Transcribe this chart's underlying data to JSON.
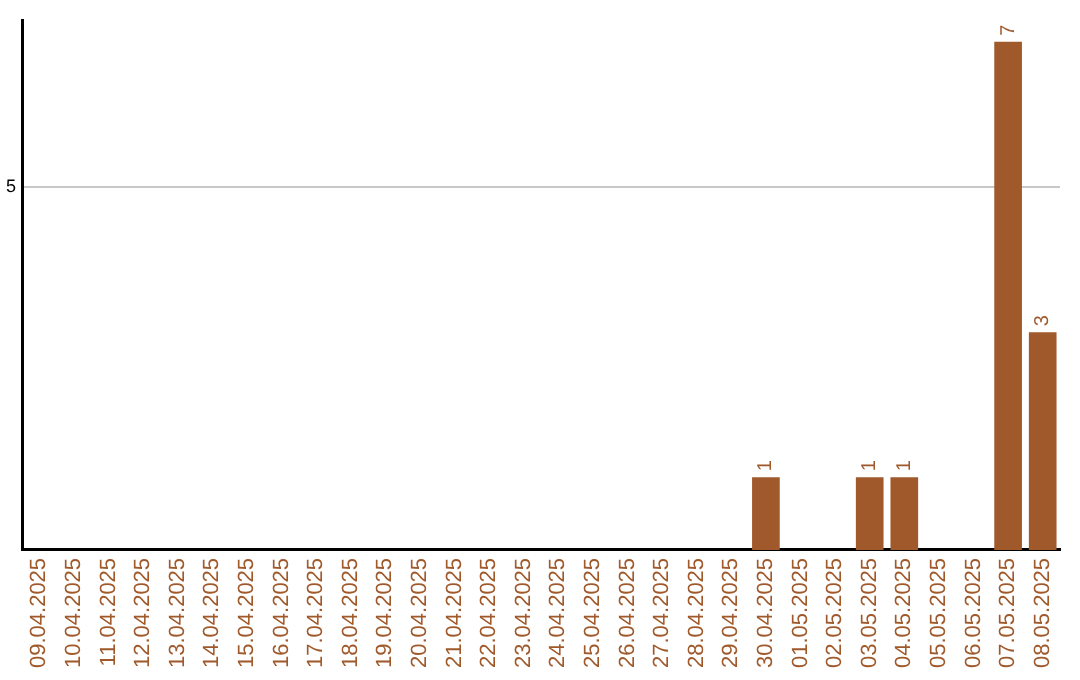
{
  "chart_data": {
    "type": "bar",
    "categories": [
      "09.04.2025",
      "10.04.2025",
      "11.04.2025",
      "12.04.2025",
      "13.04.2025",
      "14.04.2025",
      "15.04.2025",
      "16.04.2025",
      "17.04.2025",
      "18.04.2025",
      "19.04.2025",
      "20.04.2025",
      "21.04.2025",
      "22.04.2025",
      "23.04.2025",
      "24.04.2025",
      "25.04.2025",
      "26.04.2025",
      "27.04.2025",
      "28.04.2025",
      "29.04.2025",
      "30.04.2025",
      "01.05.2025",
      "02.05.2025",
      "03.05.2025",
      "04.05.2025",
      "05.05.2025",
      "06.05.2025",
      "07.05.2025",
      "08.05.2025"
    ],
    "values": [
      null,
      null,
      null,
      null,
      null,
      null,
      null,
      null,
      null,
      null,
      null,
      null,
      null,
      null,
      null,
      null,
      null,
      null,
      null,
      null,
      null,
      1,
      null,
      null,
      1,
      1,
      null,
      null,
      7,
      3
    ],
    "color": "#a0592a",
    "ylim": [
      0,
      7.3
    ],
    "yticks": [
      5
    ],
    "grid": "y",
    "data_labels": true,
    "legend": false
  }
}
